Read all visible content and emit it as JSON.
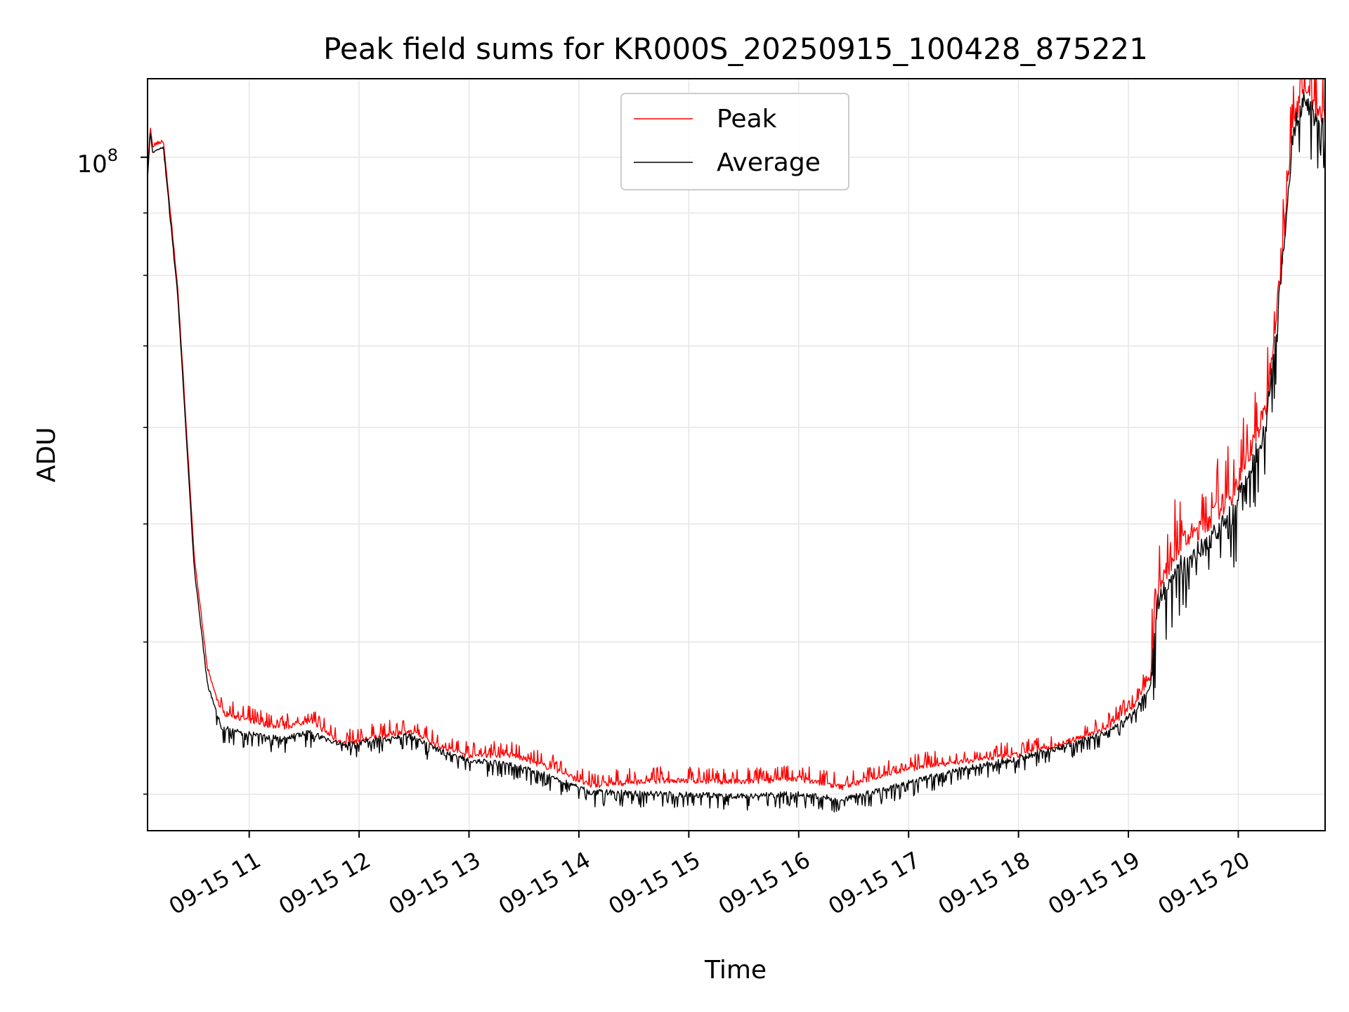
{
  "chart_data": {
    "type": "line",
    "title": "Peak field sums for KR000S_20250915_100428_875221",
    "xlabel": "Time",
    "ylabel": "ADU",
    "yscale": "log",
    "grid": true,
    "legend_position": "upper center",
    "x_tick_labels": [
      "09-15 11",
      "09-15 12",
      "09-15 13",
      "09-15 14",
      "09-15 15",
      "09-15 16",
      "09-15 17",
      "09-15 18",
      "09-15 19",
      "09-15 20"
    ],
    "x_tick_hours": [
      11,
      12,
      13,
      14,
      15,
      16,
      17,
      18,
      19,
      20
    ],
    "xlim_hours": [
      10.075,
      20.79
    ],
    "y_major_tick": {
      "value": 100000000,
      "base": "10",
      "exponent": "8"
    },
    "ylim": [
      28000000,
      116000000
    ],
    "series": [
      {
        "name": "Peak",
        "color": "#ff0000",
        "points": [
          [
            10.075,
            97000000
          ],
          [
            10.1,
            106000000
          ],
          [
            10.12,
            102000000
          ],
          [
            10.22,
            103000000
          ],
          [
            10.35,
            78000000
          ],
          [
            10.5,
            47000000
          ],
          [
            10.62,
            38000000
          ],
          [
            10.75,
            35000000
          ],
          [
            11.0,
            34500000
          ],
          [
            11.3,
            34000000
          ],
          [
            11.55,
            34500000
          ],
          [
            11.85,
            33000000
          ],
          [
            12.2,
            33500000
          ],
          [
            12.45,
            33800000
          ],
          [
            12.75,
            32800000
          ],
          [
            13.0,
            32300000
          ],
          [
            13.4,
            32300000
          ],
          [
            13.8,
            31400000
          ],
          [
            14.1,
            30500000
          ],
          [
            14.3,
            30600000
          ],
          [
            14.8,
            30800000
          ],
          [
            15.5,
            30700000
          ],
          [
            16.0,
            30900000
          ],
          [
            16.4,
            30400000
          ],
          [
            16.8,
            31200000
          ],
          [
            17.2,
            31700000
          ],
          [
            17.6,
            32000000
          ],
          [
            18.0,
            32300000
          ],
          [
            18.4,
            33000000
          ],
          [
            18.8,
            34000000
          ],
          [
            19.05,
            35500000
          ],
          [
            19.2,
            37500000
          ],
          [
            19.27,
            44000000
          ],
          [
            19.45,
            48000000
          ],
          [
            19.7,
            50000000
          ],
          [
            19.95,
            53000000
          ],
          [
            20.25,
            62000000
          ],
          [
            20.4,
            83000000
          ],
          [
            20.5,
            107000000
          ],
          [
            20.6,
            114000000
          ],
          [
            20.7,
            110000000
          ],
          [
            20.79,
            107000000
          ]
        ]
      },
      {
        "name": "Average",
        "color": "#000000",
        "points": [
          [
            10.075,
            96000000
          ],
          [
            10.1,
            105000000
          ],
          [
            10.12,
            101000000
          ],
          [
            10.22,
            102000000
          ],
          [
            10.35,
            77000000
          ],
          [
            10.5,
            46000000
          ],
          [
            10.62,
            37000000
          ],
          [
            10.75,
            34000000
          ],
          [
            11.0,
            33600000
          ],
          [
            11.3,
            33300000
          ],
          [
            11.55,
            33700000
          ],
          [
            11.85,
            32900000
          ],
          [
            12.2,
            33300000
          ],
          [
            12.45,
            33500000
          ],
          [
            12.75,
            32500000
          ],
          [
            13.0,
            32000000
          ],
          [
            13.4,
            31700000
          ],
          [
            13.8,
            30900000
          ],
          [
            14.1,
            30100000
          ],
          [
            14.3,
            30100000
          ],
          [
            14.8,
            30000000
          ],
          [
            15.5,
            29900000
          ],
          [
            16.0,
            30000000
          ],
          [
            16.4,
            29700000
          ],
          [
            16.8,
            30300000
          ],
          [
            17.2,
            31000000
          ],
          [
            17.6,
            31600000
          ],
          [
            18.0,
            32100000
          ],
          [
            18.4,
            32800000
          ],
          [
            18.8,
            33700000
          ],
          [
            19.05,
            35000000
          ],
          [
            19.2,
            36800000
          ],
          [
            19.27,
            43000000
          ],
          [
            19.45,
            46000000
          ],
          [
            19.7,
            48000000
          ],
          [
            19.95,
            51000000
          ],
          [
            20.25,
            60000000
          ],
          [
            20.4,
            81000000
          ],
          [
            20.5,
            105000000
          ],
          [
            20.6,
            112000000
          ],
          [
            20.7,
            108000000
          ],
          [
            20.79,
            105000000
          ]
        ]
      }
    ]
  }
}
